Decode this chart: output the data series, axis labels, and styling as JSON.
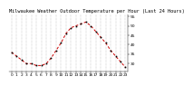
{
  "title": "Milwaukee Weather Outdoor Temperature per Hour (Last 24 Hours)",
  "hours": [
    0,
    1,
    2,
    3,
    4,
    5,
    6,
    7,
    8,
    9,
    10,
    11,
    12,
    13,
    14,
    15,
    16,
    17,
    18,
    19,
    20,
    21,
    22,
    23
  ],
  "temps": [
    36,
    34,
    32,
    30,
    30,
    29,
    29,
    30,
    33,
    37,
    41,
    46,
    49,
    50,
    51,
    52,
    50,
    47,
    44,
    41,
    37,
    34,
    31,
    28
  ],
  "line_color": "#cc0000",
  "marker_color": "#000000",
  "bg_color": "#ffffff",
  "grid_color": "#888888",
  "title_fontsize": 3.8,
  "tick_fontsize": 3.2,
  "ylim": [
    26,
    56
  ],
  "yticks": [
    30,
    35,
    40,
    45,
    50,
    55
  ],
  "xtick_labels": [
    "0",
    "1",
    "2",
    "3",
    "4",
    "5",
    "6",
    "7",
    "8",
    "9",
    "10",
    "11",
    "12",
    "13",
    "14",
    "15",
    "16",
    "17",
    "18",
    "19",
    "20",
    "21",
    "22",
    "23"
  ]
}
